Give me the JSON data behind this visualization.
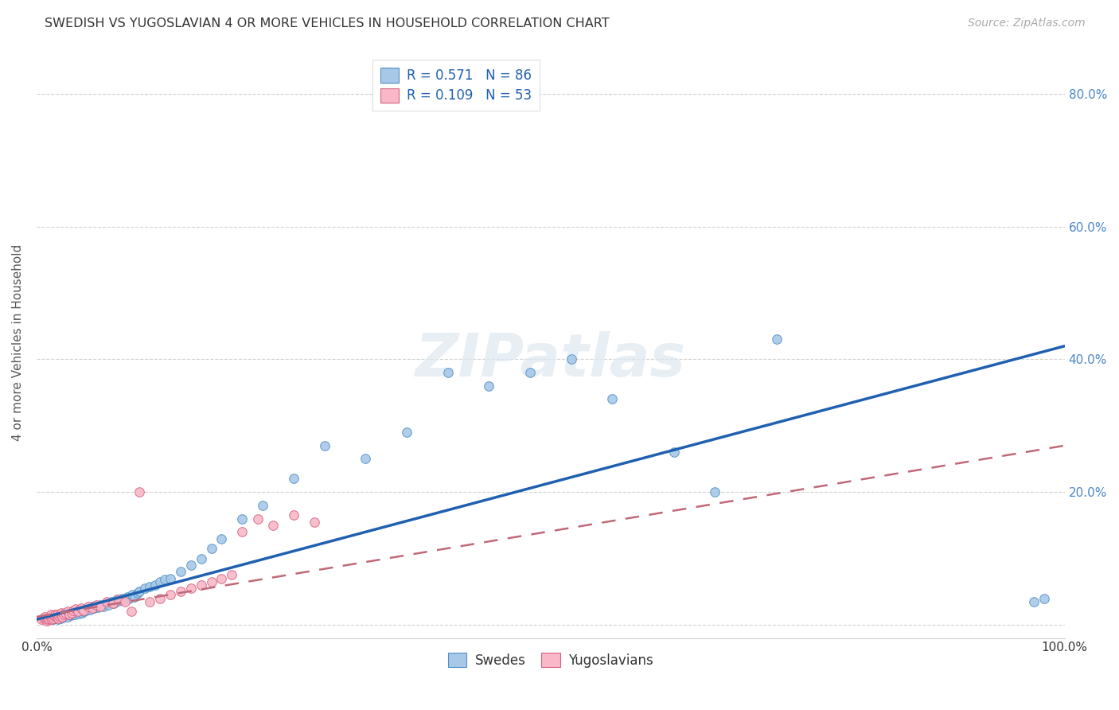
{
  "title": "SWEDISH VS YUGOSLAVIAN 4 OR MORE VEHICLES IN HOUSEHOLD CORRELATION CHART",
  "source": "Source: ZipAtlas.com",
  "ylabel": "4 or more Vehicles in Household",
  "watermark": "ZIPatlas",
  "legend_labels": [
    "Swedes",
    "Yugoslavians"
  ],
  "blue_R": "0.571",
  "blue_N": "86",
  "pink_R": "0.109",
  "pink_N": "53",
  "blue_color": "#a8c8e8",
  "pink_color": "#f8b8c8",
  "blue_edge_color": "#5090c8",
  "pink_edge_color": "#d86080",
  "blue_line_color": "#2060b0",
  "pink_line_color": "#c06878",
  "xlim": [
    0,
    1.0
  ],
  "ylim": [
    -0.02,
    0.87
  ],
  "xtick_positions": [
    0.0,
    1.0
  ],
  "xtick_labels": [
    "0.0%",
    "100.0%"
  ],
  "right_ytick_positions": [
    0.0,
    0.2,
    0.4,
    0.6,
    0.8
  ],
  "right_yticklabels": [
    "",
    "20.0%",
    "40.0%",
    "60.0%",
    "80.0%"
  ],
  "grid_yticks": [
    0.0,
    0.2,
    0.4,
    0.6,
    0.8
  ],
  "blue_x": [
    0.01,
    0.012,
    0.013,
    0.015,
    0.016,
    0.017,
    0.018,
    0.019,
    0.02,
    0.021,
    0.022,
    0.022,
    0.023,
    0.024,
    0.025,
    0.026,
    0.027,
    0.028,
    0.029,
    0.03,
    0.031,
    0.032,
    0.033,
    0.034,
    0.035,
    0.036,
    0.037,
    0.038,
    0.04,
    0.041,
    0.042,
    0.043,
    0.044,
    0.045,
    0.046,
    0.047,
    0.048,
    0.05,
    0.052,
    0.054,
    0.056,
    0.058,
    0.06,
    0.062,
    0.065,
    0.068,
    0.07,
    0.073,
    0.075,
    0.078,
    0.08,
    0.083,
    0.085,
    0.088,
    0.09,
    0.093,
    0.095,
    0.098,
    0.1,
    0.105,
    0.11,
    0.115,
    0.12,
    0.125,
    0.13,
    0.14,
    0.15,
    0.16,
    0.17,
    0.18,
    0.2,
    0.22,
    0.25,
    0.28,
    0.32,
    0.36,
    0.4,
    0.44,
    0.48,
    0.52,
    0.56,
    0.62,
    0.66,
    0.72,
    0.97,
    0.98
  ],
  "blue_y": [
    0.01,
    0.008,
    0.012,
    0.01,
    0.008,
    0.01,
    0.012,
    0.009,
    0.01,
    0.008,
    0.012,
    0.015,
    0.01,
    0.013,
    0.011,
    0.014,
    0.012,
    0.015,
    0.013,
    0.012,
    0.015,
    0.018,
    0.014,
    0.016,
    0.015,
    0.018,
    0.016,
    0.019,
    0.02,
    0.017,
    0.022,
    0.02,
    0.018,
    0.022,
    0.02,
    0.023,
    0.021,
    0.025,
    0.023,
    0.027,
    0.025,
    0.028,
    0.026,
    0.03,
    0.028,
    0.032,
    0.03,
    0.035,
    0.032,
    0.038,
    0.036,
    0.04,
    0.038,
    0.042,
    0.04,
    0.045,
    0.042,
    0.048,
    0.05,
    0.055,
    0.058,
    0.06,
    0.065,
    0.068,
    0.07,
    0.08,
    0.09,
    0.1,
    0.115,
    0.13,
    0.16,
    0.18,
    0.22,
    0.27,
    0.25,
    0.29,
    0.38,
    0.36,
    0.38,
    0.4,
    0.34,
    0.26,
    0.2,
    0.43,
    0.035,
    0.04
  ],
  "pink_x": [
    0.005,
    0.007,
    0.008,
    0.01,
    0.011,
    0.012,
    0.013,
    0.014,
    0.015,
    0.016,
    0.017,
    0.018,
    0.019,
    0.02,
    0.021,
    0.022,
    0.023,
    0.024,
    0.025,
    0.026,
    0.028,
    0.03,
    0.032,
    0.034,
    0.036,
    0.038,
    0.04,
    0.043,
    0.046,
    0.05,
    0.054,
    0.058,
    0.062,
    0.068,
    0.074,
    0.08,
    0.086,
    0.092,
    0.1,
    0.11,
    0.12,
    0.13,
    0.14,
    0.15,
    0.16,
    0.17,
    0.18,
    0.19,
    0.2,
    0.215,
    0.23,
    0.25,
    0.27
  ],
  "pink_y": [
    0.008,
    0.01,
    0.012,
    0.006,
    0.008,
    0.01,
    0.012,
    0.015,
    0.008,
    0.01,
    0.013,
    0.016,
    0.012,
    0.015,
    0.01,
    0.013,
    0.016,
    0.018,
    0.012,
    0.015,
    0.018,
    0.02,
    0.015,
    0.018,
    0.021,
    0.024,
    0.02,
    0.025,
    0.022,
    0.028,
    0.025,
    0.03,
    0.028,
    0.035,
    0.032,
    0.038,
    0.035,
    0.02,
    0.2,
    0.035,
    0.04,
    0.045,
    0.05,
    0.055,
    0.06,
    0.065,
    0.07,
    0.075,
    0.14,
    0.16,
    0.15,
    0.165,
    0.155
  ],
  "blue_trend_x": [
    0.0,
    1.0
  ],
  "blue_trend_y": [
    0.008,
    0.42
  ],
  "pink_trend_x": [
    0.0,
    1.0
  ],
  "pink_trend_y": [
    0.012,
    0.27
  ]
}
